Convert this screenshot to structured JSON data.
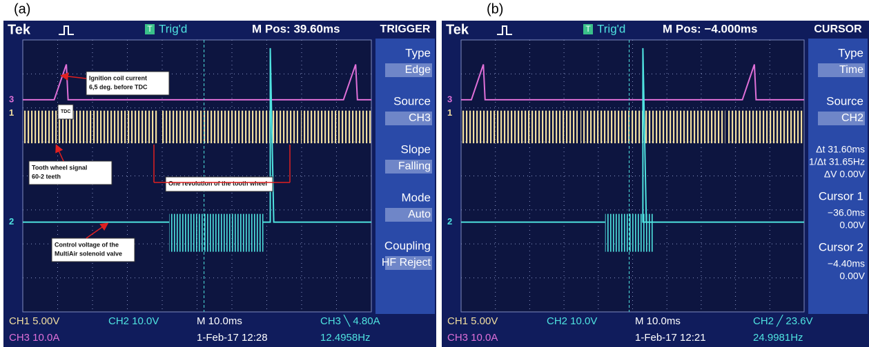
{
  "labels": [
    "(a)",
    "(b)"
  ],
  "panels": [
    {
      "brand": "Tek",
      "trigger_icon": "T",
      "trigger_status": "Trig'd",
      "m_pos": "M Pos: 39.60ms",
      "menu_title": "TRIGGER",
      "menu": [
        {
          "label": "Type",
          "value": "Edge"
        },
        {
          "label": "Source",
          "value": "CH3"
        },
        {
          "label": "Slope",
          "value": "Falling"
        },
        {
          "label": "Mode",
          "value": "Auto"
        },
        {
          "label": "Coupling",
          "value": "HF Reject"
        }
      ],
      "channel_markers": [
        "3",
        "1",
        "2"
      ],
      "annotations": [
        {
          "lines": [
            "Ignition coil current",
            "6,5 deg. before TDC"
          ]
        },
        {
          "lines": [
            "TDC"
          ]
        },
        {
          "lines": [
            "Tooth wheel signal",
            "60-2 teeth"
          ]
        },
        {
          "lines": [
            "One revolution of the tooth wheel"
          ]
        },
        {
          "lines": [
            "Control voltage of the",
            "MultiAir solenoid valve"
          ]
        }
      ],
      "status": {
        "ch1": "CH1  5.00V",
        "ch2": "CH2  10.0V",
        "time": "M 10.0ms",
        "trigger": "CH3 ╲ 4.80A",
        "ch3": "CH3  10.0A",
        "date": "1-Feb-17 12:28",
        "freq": "12.4958Hz"
      }
    },
    {
      "brand": "Tek",
      "trigger_icon": "T",
      "trigger_status": "Trig'd",
      "m_pos": "M Pos: −4.000ms",
      "menu_title": "CURSOR",
      "menu": [
        {
          "label": "Type",
          "value": "Time"
        },
        {
          "label": "Source",
          "value": "CH2"
        },
        {
          "lines": [
            "Δt 31.60ms",
            "1/Δt 31.65Hz",
            "ΔV 0.00V"
          ]
        },
        {
          "label": "Cursor 1",
          "lines": [
            "−36.0ms",
            "0.00V"
          ]
        },
        {
          "label": "Cursor 2",
          "lines": [
            "−4.40ms",
            "0.00V"
          ]
        }
      ],
      "channel_markers": [
        "3",
        "1",
        "2"
      ],
      "annotations": [],
      "status": {
        "ch1": "CH1  5.00V",
        "ch2": "CH2  10.0V",
        "time": "M 10.0ms",
        "trigger": "CH2 ╱ 23.6V",
        "ch3": "CH3  10.0A",
        "date": "1-Feb-17 12:21",
        "freq": "24.9981Hz"
      }
    }
  ]
}
